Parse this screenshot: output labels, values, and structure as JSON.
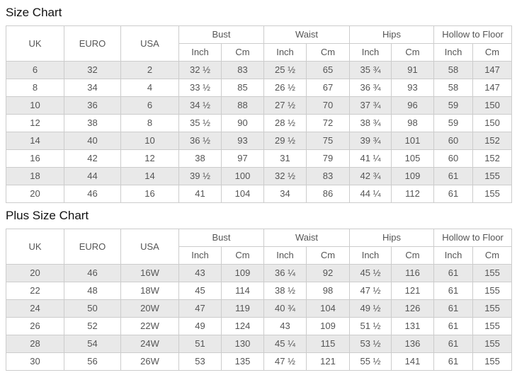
{
  "colors": {
    "border": "#cccccc",
    "row_shade": "#e9e9e9",
    "text": "#555555",
    "title_text": "#111111",
    "background": "#ffffff"
  },
  "tables": [
    {
      "title": "Size Chart",
      "simple_columns": [
        "UK",
        "EURO",
        "USA"
      ],
      "group_columns": [
        {
          "label": "Bust",
          "sub": [
            "Inch",
            "Cm"
          ]
        },
        {
          "label": "Waist",
          "sub": [
            "Inch",
            "Cm"
          ]
        },
        {
          "label": "Hips",
          "sub": [
            "Inch",
            "Cm"
          ]
        },
        {
          "label": "Hollow to Floor",
          "sub": [
            "Inch",
            "Cm"
          ]
        }
      ],
      "rows": [
        [
          "6",
          "32",
          "2",
          "32 ½",
          "83",
          "25 ½",
          "65",
          "35 ¾",
          "91",
          "58",
          "147"
        ],
        [
          "8",
          "34",
          "4",
          "33 ½",
          "85",
          "26 ½",
          "67",
          "36 ¾",
          "93",
          "58",
          "147"
        ],
        [
          "10",
          "36",
          "6",
          "34 ½",
          "88",
          "27 ½",
          "70",
          "37 ¾",
          "96",
          "59",
          "150"
        ],
        [
          "12",
          "38",
          "8",
          "35 ½",
          "90",
          "28 ½",
          "72",
          "38 ¾",
          "98",
          "59",
          "150"
        ],
        [
          "14",
          "40",
          "10",
          "36 ½",
          "93",
          "29 ½",
          "75",
          "39 ¾",
          "101",
          "60",
          "152"
        ],
        [
          "16",
          "42",
          "12",
          "38",
          "97",
          "31",
          "79",
          "41 ¼",
          "105",
          "60",
          "152"
        ],
        [
          "18",
          "44",
          "14",
          "39 ½",
          "100",
          "32 ½",
          "83",
          "42 ¾",
          "109",
          "61",
          "155"
        ],
        [
          "20",
          "46",
          "16",
          "41",
          "104",
          "34",
          "86",
          "44 ¼",
          "112",
          "61",
          "155"
        ]
      ]
    },
    {
      "title": "Plus Size Chart",
      "simple_columns": [
        "UK",
        "EURO",
        "USA"
      ],
      "group_columns": [
        {
          "label": "Bust",
          "sub": [
            "Inch",
            "Cm"
          ]
        },
        {
          "label": "Waist",
          "sub": [
            "Inch",
            "Cm"
          ]
        },
        {
          "label": "Hips",
          "sub": [
            "Inch",
            "Cm"
          ]
        },
        {
          "label": "Hollow to Floor",
          "sub": [
            "Inch",
            "Cm"
          ]
        }
      ],
      "rows": [
        [
          "20",
          "46",
          "16W",
          "43",
          "109",
          "36 ¼",
          "92",
          "45 ½",
          "116",
          "61",
          "155"
        ],
        [
          "22",
          "48",
          "18W",
          "45",
          "114",
          "38 ½",
          "98",
          "47 ½",
          "121",
          "61",
          "155"
        ],
        [
          "24",
          "50",
          "20W",
          "47",
          "119",
          "40 ¾",
          "104",
          "49 ½",
          "126",
          "61",
          "155"
        ],
        [
          "26",
          "52",
          "22W",
          "49",
          "124",
          "43",
          "109",
          "51 ½",
          "131",
          "61",
          "155"
        ],
        [
          "28",
          "54",
          "24W",
          "51",
          "130",
          "45 ¼",
          "115",
          "53 ½",
          "136",
          "61",
          "155"
        ],
        [
          "30",
          "56",
          "26W",
          "53",
          "135",
          "47 ½",
          "121",
          "55 ½",
          "141",
          "61",
          "155"
        ]
      ]
    }
  ]
}
